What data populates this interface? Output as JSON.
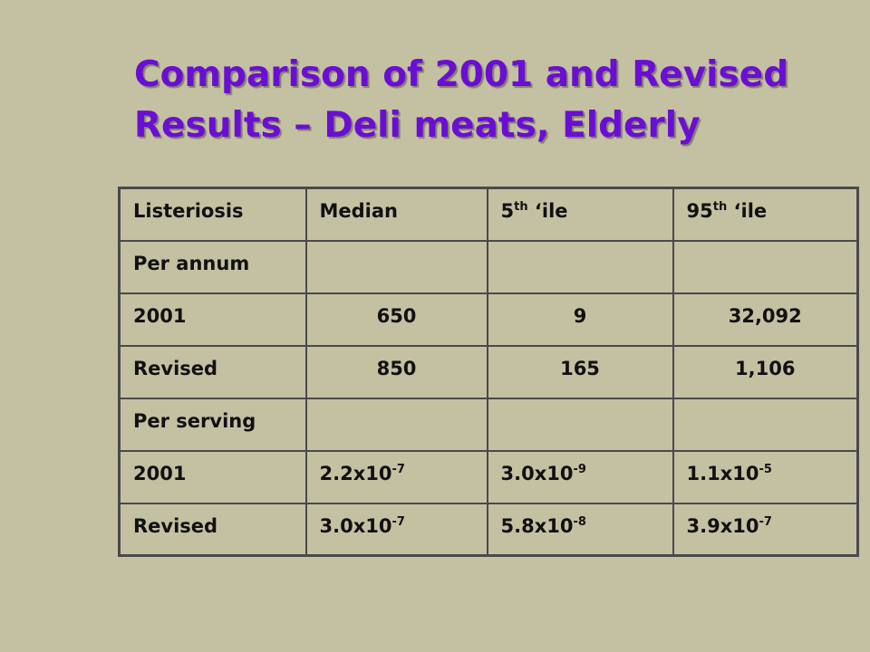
{
  "slide": {
    "title_line1": "Comparison of 2001 and Revised",
    "title_line2": "Results – Deli meats, Elderly"
  },
  "table": {
    "headers": {
      "col1": "Listeriosis",
      "col2": "Median",
      "col3": {
        "base": "5",
        "sup": "th",
        "rest": " ‘ile"
      },
      "col4": {
        "base": "95",
        "sup": "th",
        "rest": " ‘ile"
      }
    },
    "per_annum": {
      "label": "Per annum",
      "rows": [
        {
          "label": "2001",
          "median": "650",
          "p5": "9",
          "p95": "32,092"
        },
        {
          "label": "Revised",
          "median": "850",
          "p5": "165",
          "p95": "1,106"
        }
      ]
    },
    "per_serving": {
      "label": "Per serving",
      "rows": [
        {
          "label": "2001",
          "median": {
            "base": "2.2x10",
            "exp": "-7"
          },
          "p5": {
            "base": "3.0x10",
            "exp": "-9"
          },
          "p95": {
            "base": "1.1x10",
            "exp": "-5"
          }
        },
        {
          "label": "Revised",
          "median": {
            "base": "3.0x10",
            "exp": "-7"
          },
          "p5": {
            "base": "5.8x10",
            "exp": "-8"
          },
          "p95": {
            "base": "3.9x10",
            "exp": "-7"
          }
        }
      ]
    }
  }
}
